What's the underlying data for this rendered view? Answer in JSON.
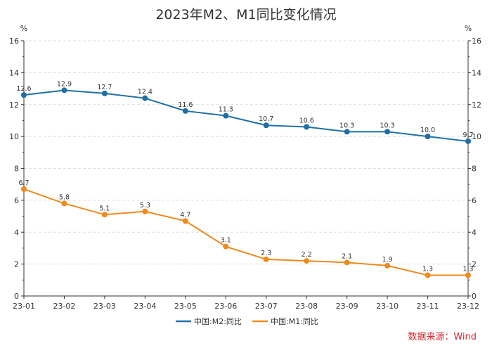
{
  "chart_data": {
    "type": "line",
    "title": "2023年M2、M1同比变化情况",
    "y_unit_left": "%",
    "y_unit_right": "%",
    "categories": [
      "23-01",
      "23-02",
      "23-03",
      "23-04",
      "23-05",
      "23-06",
      "23-07",
      "23-08",
      "23-09",
      "23-10",
      "23-11",
      "23-12"
    ],
    "ylim": [
      0,
      16
    ],
    "yticks": [
      0,
      2,
      4,
      6,
      8,
      10,
      12,
      14,
      16
    ],
    "grid": true,
    "legend_position": "bottom",
    "series": [
      {
        "name": "中国:M2:同比",
        "color": "#1f6fa5",
        "values": [
          12.6,
          12.9,
          12.7,
          12.4,
          11.6,
          11.3,
          10.7,
          10.6,
          10.3,
          10.3,
          10.0,
          9.7
        ],
        "labels": [
          "12.6",
          "12.9",
          "12.7",
          "12.4",
          "11.6",
          "11.3",
          "10.7",
          "10.6",
          "10.3",
          "10.3",
          "10.0",
          "9.7"
        ]
      },
      {
        "name": "中国:M1:同比",
        "color": "#f08a1c",
        "values": [
          6.7,
          5.8,
          5.1,
          5.3,
          4.7,
          3.1,
          2.3,
          2.2,
          2.1,
          1.9,
          1.3,
          1.3
        ],
        "labels": [
          "6.7",
          "5.8",
          "5.1",
          "5.3",
          "4.7",
          "3.1",
          "2.3",
          "2.2",
          "2.1",
          "1.9",
          "1.3",
          "1.3"
        ]
      }
    ],
    "source": "数据来源：Wind"
  }
}
